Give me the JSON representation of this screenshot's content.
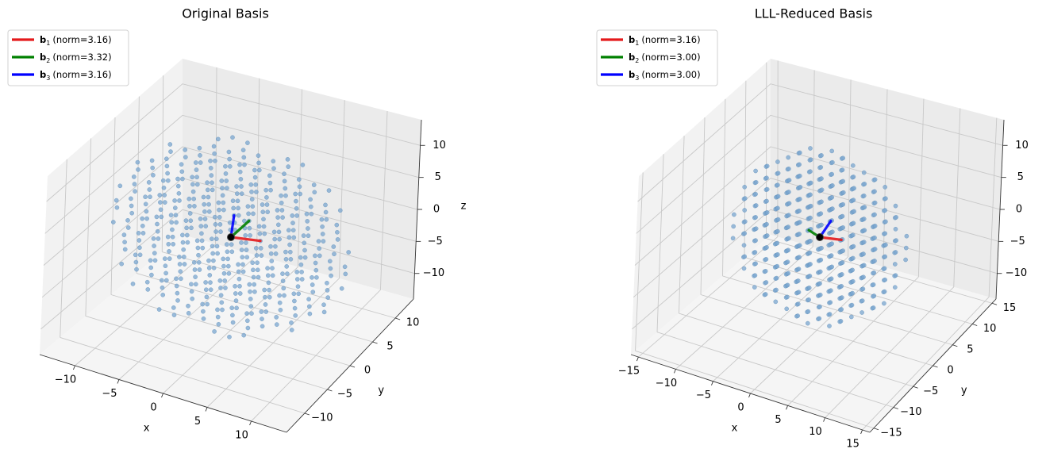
{
  "chart_data": [
    {
      "type": "scatter",
      "title": "Original Basis",
      "xlabel": "x",
      "ylabel": "y",
      "zlabel": "z",
      "x_ticks": [
        -10,
        -5,
        0,
        5,
        10
      ],
      "y_ticks": [
        -10,
        -5,
        0,
        5,
        10
      ],
      "z_ticks": [
        -10,
        -5,
        0,
        5,
        10
      ],
      "x_range": [
        -14,
        14
      ],
      "y_range": [
        -14,
        14
      ],
      "z_range": [
        -14,
        14
      ],
      "grid": true,
      "legend_position": "top-left",
      "point_style": {
        "color": "#7aa6cf",
        "note": "lattice points within a ball of radius ~13"
      },
      "origin": [
        0,
        0,
        0
      ],
      "vectors": [
        {
          "label": "b",
          "subscript": "1",
          "norm_text": "(norm=3.16)",
          "norm": 3.16,
          "color": "#e41a1c",
          "components": [
            3,
            1,
            0
          ]
        },
        {
          "label": "b",
          "subscript": "2",
          "norm_text": "(norm=3.32)",
          "norm": 3.32,
          "color": "#008000",
          "components": [
            1,
            3,
            1
          ]
        },
        {
          "label": "b",
          "subscript": "3",
          "norm_text": "(norm=3.16)",
          "norm": 3.16,
          "color": "#0000ff",
          "components": [
            0,
            1,
            3
          ]
        }
      ]
    },
    {
      "type": "scatter",
      "title": "LLL-Reduced Basis",
      "xlabel": "x",
      "ylabel": "y",
      "zlabel": "",
      "x_ticks": [
        -15,
        -10,
        -5,
        0,
        5,
        10,
        15
      ],
      "y_ticks": [
        -15,
        -10,
        -5,
        0,
        5,
        10,
        15
      ],
      "z_ticks": [
        -10,
        -5,
        0,
        5,
        10
      ],
      "x_range": [
        -16,
        16
      ],
      "y_range": [
        -16,
        16
      ],
      "z_range": [
        -14,
        14
      ],
      "grid": true,
      "legend_position": "top-left",
      "point_style": {
        "color": "#7aa6cf",
        "note": "lattice points within a ball of radius ~13"
      },
      "origin": [
        0,
        0,
        0
      ],
      "vectors": [
        {
          "label": "b",
          "subscript": "1",
          "norm_text": "(norm=3.16)",
          "norm": 3.16,
          "color": "#e41a1c",
          "components": [
            3,
            1,
            0
          ]
        },
        {
          "label": "b",
          "subscript": "2",
          "norm_text": "(norm=3.00)",
          "norm": 3.0,
          "color": "#008000",
          "components": [
            -1,
            -2,
            2
          ]
        },
        {
          "label": "b",
          "subscript": "3",
          "norm_text": "(norm=3.00)",
          "norm": 3.0,
          "color": "#0000ff",
          "components": [
            1,
            2,
            2
          ]
        }
      ]
    }
  ]
}
